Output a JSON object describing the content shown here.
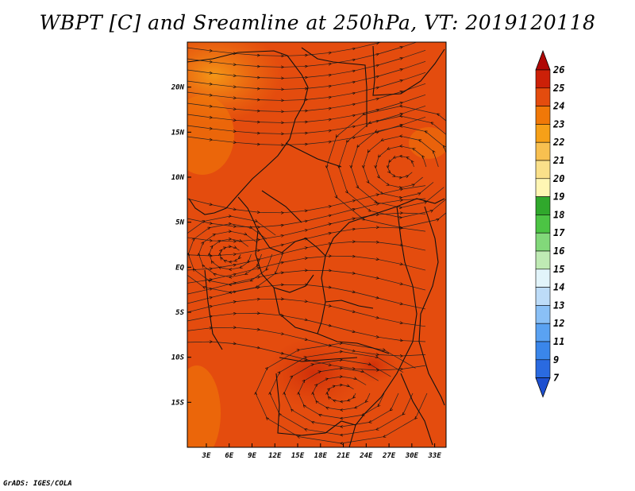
{
  "title": "WBPT [C] and Sreamline at 250hPa, VT: 2019120118",
  "footer": "GrADS: IGES/COLA",
  "chart_data": {
    "type": "heatmap",
    "variable": "WBPT [C]",
    "overlay": "streamlines",
    "level": "250hPa",
    "valid_time": "2019120118",
    "x_ticks": [
      "3E",
      "6E",
      "9E",
      "12E",
      "15E",
      "18E",
      "21E",
      "24E",
      "27E",
      "30E",
      "33E"
    ],
    "x_tick_values": [
      3,
      6,
      9,
      12,
      15,
      18,
      21,
      24,
      27,
      30,
      33
    ],
    "y_ticks": [
      "20N",
      "15N",
      "10N",
      "5N",
      "EQ",
      "5S",
      "10S",
      "15S"
    ],
    "y_tick_values": [
      20,
      15,
      10,
      5,
      0,
      -5,
      -10,
      -15
    ],
    "xlim": [
      0.5,
      34.5
    ],
    "ylim": [
      -20,
      25
    ],
    "grid": false,
    "colorbar": {
      "placement": "right",
      "levels": [
        "7",
        "9",
        "11",
        "12",
        "13",
        "14",
        "15",
        "16",
        "17",
        "18",
        "19",
        "20",
        "21",
        "22",
        "23",
        "24",
        "25",
        "26"
      ],
      "colors": [
        "#1e50d0",
        "#2a6ae0",
        "#3a86ea",
        "#5aa2f2",
        "#8ac0f6",
        "#bddcf8",
        "#e2f4fa",
        "#bfeab4",
        "#82d87a",
        "#4cc444",
        "#30a82c",
        "#fff6b4",
        "#fae08a",
        "#f8c050",
        "#f6a018",
        "#f07808",
        "#e44c0e",
        "#cc2008",
        "#b00806"
      ]
    }
  }
}
